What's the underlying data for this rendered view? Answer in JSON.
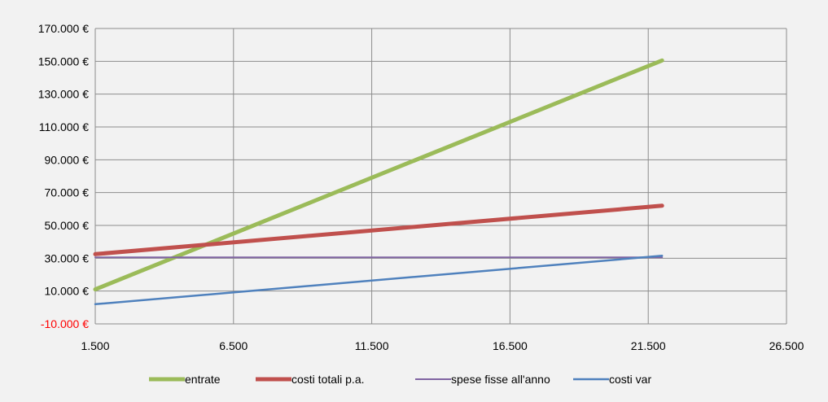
{
  "chart_data": {
    "type": "line",
    "title": "",
    "xlabel": "",
    "ylabel": "",
    "xlim": [
      1500,
      26500
    ],
    "ylim": [
      -10000,
      170000
    ],
    "grid": true,
    "legend_position": "bottom",
    "x_ticks": [
      "1.500",
      "6.500",
      "11.500",
      "16.500",
      "21.500",
      "26.500"
    ],
    "x_tick_values": [
      1500,
      6500,
      11500,
      16500,
      21500,
      26500
    ],
    "y_ticks": [
      "-10.000 €",
      "10.000 €",
      "30.000 €",
      "50.000 €",
      "70.000 €",
      "90.000 €",
      "110.000 €",
      "130.000 €",
      "150.000 €",
      "170.000 €"
    ],
    "y_tick_values": [
      -10000,
      10000,
      30000,
      50000,
      70000,
      90000,
      110000,
      130000,
      150000,
      170000
    ],
    "negative_tick_color": "#ff0000",
    "series": [
      {
        "name": "entrate",
        "color": "#9bbb59",
        "x": [
          1500,
          22000
        ],
        "y": [
          11000,
          150500
        ]
      },
      {
        "name": "costi totali p.a.",
        "color": "#c0504d",
        "x": [
          1500,
          22000
        ],
        "y": [
          32500,
          62000
        ]
      },
      {
        "name": "spese fisse all'anno",
        "color": "#8064a2",
        "x": [
          1500,
          22000
        ],
        "y": [
          30500,
          30500
        ]
      },
      {
        "name": "costi var",
        "color": "#4f81bd",
        "x": [
          1500,
          22000
        ],
        "y": [
          2000,
          31500
        ]
      }
    ]
  }
}
